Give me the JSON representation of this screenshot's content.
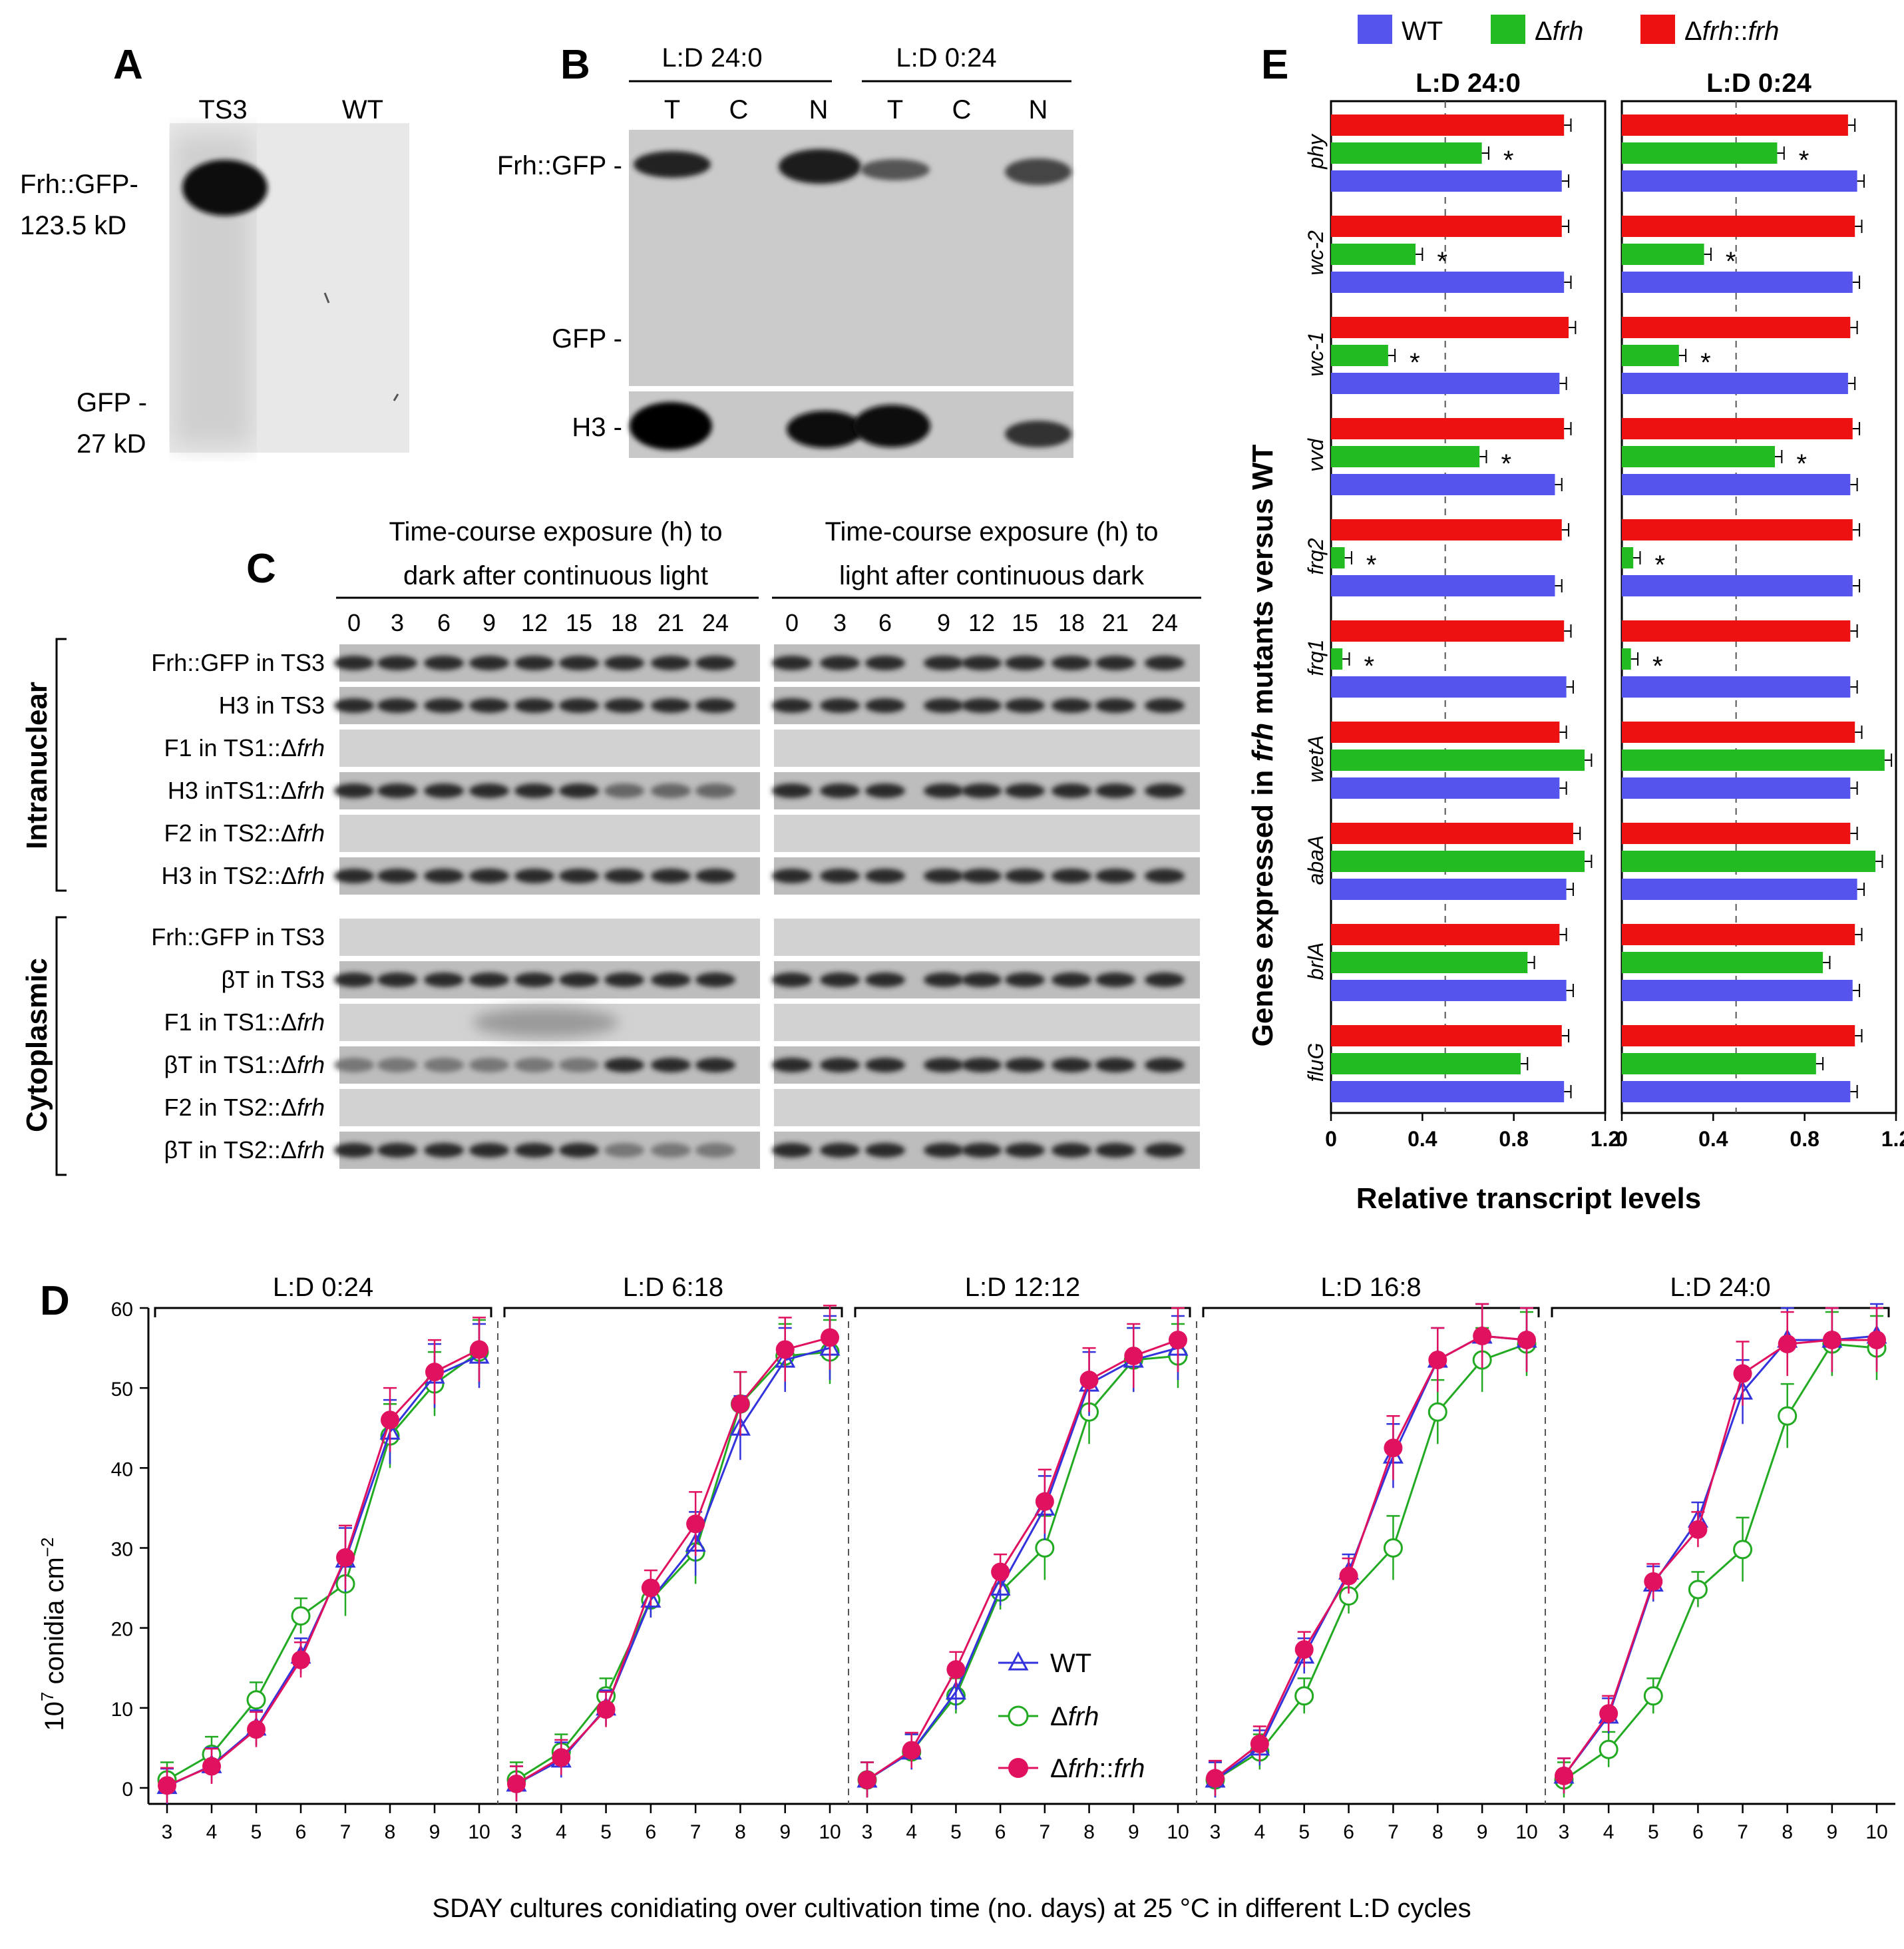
{
  "panels": {
    "A": {
      "letter": "A",
      "lanes": [
        "TS3",
        "WT"
      ],
      "labels": [
        "Frh::GFP-",
        "123.5 kD",
        "GFP -",
        "27 kD"
      ]
    },
    "B": {
      "letter": "B",
      "conditions": [
        "L:D 24:0",
        "L:D 0:24"
      ],
      "lanes": [
        "T",
        "C",
        "N",
        "T",
        "C",
        "N"
      ],
      "labels": [
        "Frh::GFP -",
        "GFP -",
        "H3 -"
      ]
    },
    "C": {
      "letter": "C",
      "header_left": [
        "Time-course exposure (h) to",
        "dark after continuous light"
      ],
      "header_right": [
        "Time-course exposure (h) to",
        "light after continuous dark"
      ],
      "timepoints": [
        "0",
        "3",
        "6",
        "9",
        "12",
        "15",
        "18",
        "21",
        "24"
      ],
      "groups": [
        "Intranuclear",
        "Cytoplasmic"
      ],
      "rows": [
        {
          "label": "Frh::GFP in TS3",
          "color": "#2d2dcc"
        },
        {
          "label": "H3 in TS3",
          "color": "#000000"
        },
        {
          "label": "F1 in TS1::Δfrh",
          "color": "#2d2dcc"
        },
        {
          "label": "H3 inTS1::Δfrh",
          "color": "#000000"
        },
        {
          "label": "F2 in TS2::Δfrh",
          "color": "#2d2dcc"
        },
        {
          "label": "H3 in TS2::Δfrh",
          "color": "#000000"
        },
        {
          "label": "Frh::GFP in TS3",
          "color": "#2d2dcc"
        },
        {
          "label": "βT in TS3",
          "color": "#000000"
        },
        {
          "label": "F1 in TS1::Δfrh",
          "color": "#2d2dcc"
        },
        {
          "label": "βT in TS1::Δfrh",
          "color": "#000000"
        },
        {
          "label": "F2 in TS2::Δfrh",
          "color": "#2d2dcc"
        },
        {
          "label": "βT in TS2::Δfrh",
          "color": "#000000"
        }
      ]
    },
    "D": {
      "letter": "D"
    },
    "E": {
      "letter": "E"
    }
  },
  "chart_data": [
    {
      "id": "D",
      "type": "line",
      "ylabel": "10^7 conidia cm^-2",
      "xlabel": "SDAY cultures conidiating over cultivation time (no. days) at 25 °C in different L:D cycles",
      "x": [
        3,
        4,
        5,
        6,
        7,
        8,
        9,
        10
      ],
      "ylim": [
        0,
        60
      ],
      "yticks": [
        0,
        10,
        20,
        30,
        40,
        50,
        60
      ],
      "legend": [
        "WT",
        "Δfrh",
        "Δfrh::frh"
      ],
      "colors": {
        "WT": "#3333dd",
        "Δfrh": "#22aa22",
        "Δfrh::frh": "#e0115f"
      },
      "facets": [
        {
          "title": "L:D 0:24",
          "series": [
            {
              "name": "WT",
              "values": [
                0.2,
                2.8,
                7.5,
                16.5,
                28.5,
                44.5,
                51.5,
                54.0
              ]
            },
            {
              "name": "Δfrh",
              "values": [
                1.0,
                4.2,
                11.0,
                21.5,
                25.5,
                44.0,
                50.5,
                54.5
              ]
            },
            {
              "name": "Δfrh::frh",
              "values": [
                0.3,
                2.7,
                7.3,
                16.0,
                28.8,
                46.0,
                52.0,
                54.8
              ]
            }
          ]
        },
        {
          "title": "L:D 6:18",
          "series": [
            {
              "name": "WT",
              "values": [
                0.5,
                3.5,
                10.0,
                23.5,
                30.5,
                45.0,
                53.5,
                55.0
              ]
            },
            {
              "name": "Δfrh",
              "values": [
                1.0,
                4.5,
                11.5,
                23.5,
                29.5,
                48.0,
                54.0,
                54.5
              ]
            },
            {
              "name": "Δfrh::frh",
              "values": [
                0.5,
                3.8,
                9.8,
                25.0,
                33.0,
                48.0,
                54.8,
                56.3
              ]
            }
          ]
        },
        {
          "title": "L:D 12:12",
          "series": [
            {
              "name": "WT",
              "values": [
                1.0,
                4.5,
                12.0,
                25.0,
                35.0,
                50.5,
                53.5,
                55.0
              ]
            },
            {
              "name": "Δfrh",
              "values": [
                1.0,
                4.5,
                11.5,
                24.5,
                30.0,
                47.0,
                53.5,
                54.0
              ]
            },
            {
              "name": "Δfrh::frh",
              "values": [
                1.0,
                4.7,
                14.8,
                27.0,
                35.8,
                51.0,
                54.0,
                56.0
              ]
            }
          ]
        },
        {
          "title": "L:D 16:8",
          "series": [
            {
              "name": "WT",
              "values": [
                1.0,
                5.0,
                16.5,
                27.0,
                41.5,
                53.5,
                56.5,
                56.0
              ]
            },
            {
              "name": "Δfrh",
              "values": [
                1.0,
                4.5,
                11.5,
                24.0,
                30.0,
                47.0,
                53.5,
                55.5
              ]
            },
            {
              "name": "Δfrh::frh",
              "values": [
                1.2,
                5.5,
                17.3,
                26.5,
                42.5,
                53.5,
                56.5,
                56.0
              ]
            }
          ]
        },
        {
          "title": "L:D 24:0",
          "series": [
            {
              "name": "WT",
              "values": [
                1.5,
                9.0,
                25.5,
                33.5,
                49.5,
                56.0,
                56.0,
                56.5
              ]
            },
            {
              "name": "Δfrh",
              "values": [
                1.0,
                4.8,
                11.5,
                24.8,
                29.8,
                46.5,
                55.5,
                55.0
              ]
            },
            {
              "name": "Δfrh::frh",
              "values": [
                1.5,
                9.3,
                25.8,
                32.3,
                51.8,
                55.5,
                56.0,
                56.0
              ]
            }
          ]
        }
      ]
    },
    {
      "id": "E",
      "type": "bar",
      "orientation": "horizontal",
      "ylabel": "Genes expressed in frh mutants versus WT",
      "xlabel": "Relative transcript levels",
      "xlim": [
        0,
        1.2
      ],
      "xticks": [
        "0",
        "0.4",
        "0.8",
        "1.2"
      ],
      "reference_line": 0.5,
      "legend": [
        "WT",
        "Δfrh",
        "Δfrh::frh"
      ],
      "colors": {
        "WT": "#5555ee",
        "Δfrh": "#22bb22",
        "Δfrh::frh": "#ee1111"
      },
      "categories": [
        "phy",
        "wc-2",
        "wc-1",
        "vvd",
        "frq2",
        "frq1",
        "wetA",
        "abaA",
        "brlA",
        "fluG"
      ],
      "significance_marker": "*",
      "facets": [
        {
          "title": "L:D 24:0",
          "series": [
            {
              "name": "Δfrh::frh",
              "values": [
                1.02,
                1.01,
                1.04,
                1.02,
                1.01,
                1.02,
                1.0,
                1.06,
                1.0,
                1.01
              ]
            },
            {
              "name": "Δfrh",
              "values": [
                0.66,
                0.37,
                0.25,
                0.65,
                0.06,
                0.05,
                1.11,
                1.11,
                0.86,
                0.83
              ]
            },
            {
              "name": "WT",
              "values": [
                1.01,
                1.02,
                1.0,
                0.98,
                0.98,
                1.03,
                1.0,
                1.03,
                1.03,
                1.02
              ]
            }
          ],
          "significant": [
            "phy",
            "wc-2",
            "wc-1",
            "vvd",
            "frq2",
            "frq1"
          ]
        },
        {
          "title": "L:D 0:24",
          "series": [
            {
              "name": "Δfrh::frh",
              "values": [
                0.99,
                1.02,
                1.0,
                1.01,
                1.01,
                1.0,
                1.02,
                1.0,
                1.02,
                1.02
              ]
            },
            {
              "name": "Δfrh",
              "values": [
                0.68,
                0.36,
                0.25,
                0.67,
                0.05,
                0.04,
                1.15,
                1.11,
                0.88,
                0.85
              ]
            },
            {
              "name": "WT",
              "values": [
                1.03,
                1.01,
                0.99,
                1.0,
                1.01,
                1.0,
                1.0,
                1.03,
                1.01,
                1.0
              ]
            }
          ],
          "significant": [
            "phy",
            "wc-2",
            "wc-1",
            "vvd",
            "frq2",
            "frq1"
          ]
        }
      ]
    }
  ]
}
